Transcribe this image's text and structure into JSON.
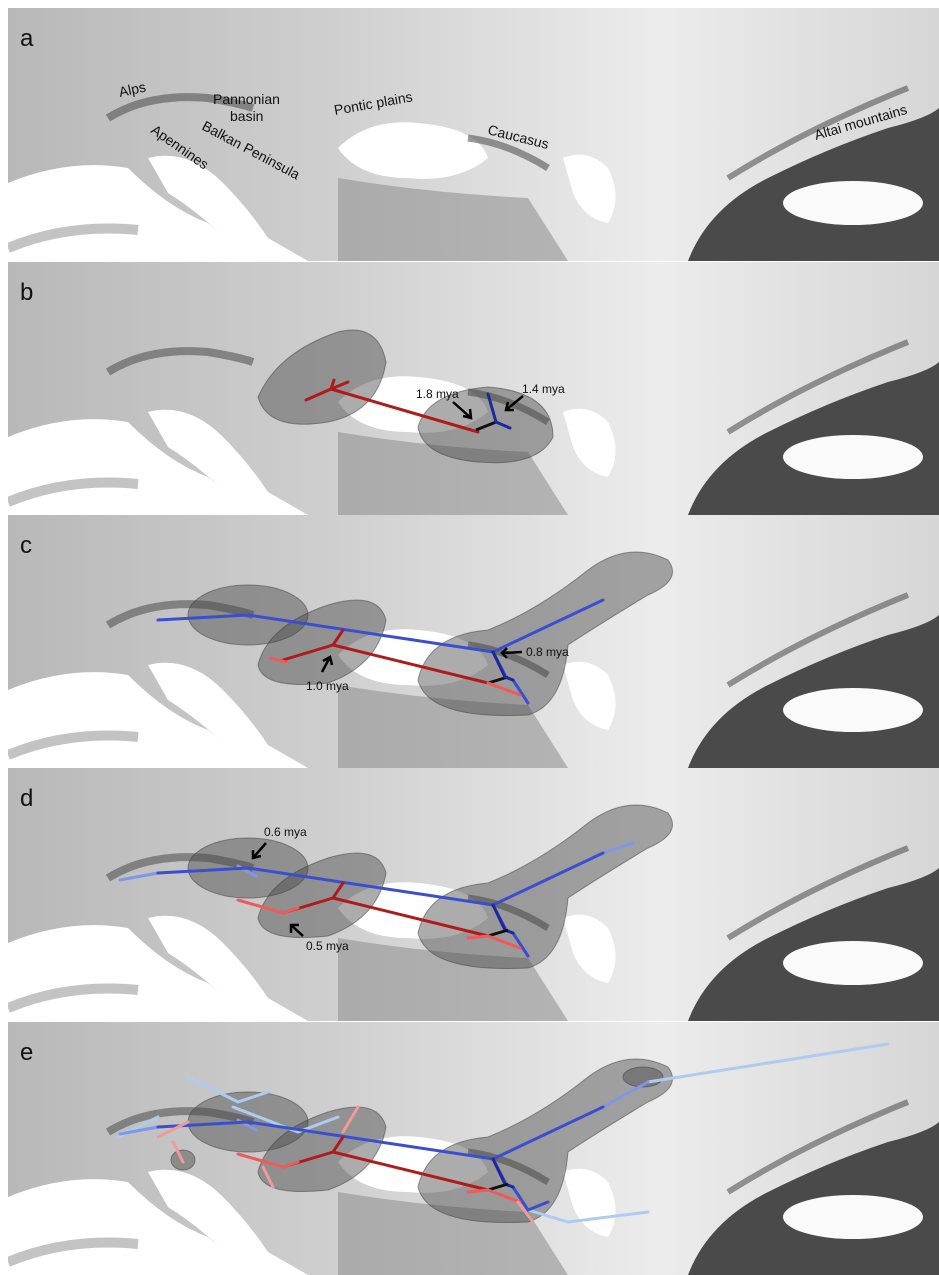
{
  "panels": [
    {
      "label": "a",
      "annotations": [
        {
          "text": "Alps"
        },
        {
          "lines": [
            "Pannonian",
            "basin"
          ]
        },
        {
          "text": "Pontic plains"
        },
        {
          "text": "Apennines"
        },
        {
          "text": "Balkan Peninsula"
        },
        {
          "text": "Caucasus"
        },
        {
          "text": "Altai mountains"
        }
      ]
    },
    {
      "label": "b",
      "annotations": [
        {
          "text": "1.8 mya"
        },
        {
          "text": "1.4 mya"
        }
      ]
    },
    {
      "label": "c",
      "annotations": [
        {
          "text": "1.0 mya"
        },
        {
          "text": "0.8 mya"
        }
      ]
    },
    {
      "label": "d",
      "annotations": [
        {
          "text": "0.6 mya"
        },
        {
          "text": "0.5 mya"
        }
      ]
    },
    {
      "label": "e",
      "annotations": []
    }
  ]
}
